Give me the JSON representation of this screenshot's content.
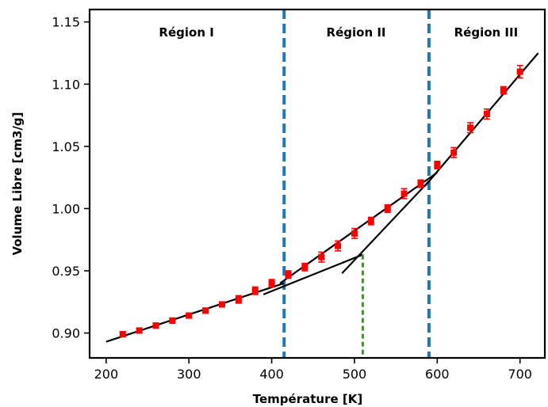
{
  "chart_data": {
    "type": "scatter",
    "title": "",
    "xlabel": "Température [K]",
    "ylabel": "Volume Libre [cm3/g]",
    "xlim": [
      180,
      730
    ],
    "ylim": [
      0.88,
      1.16
    ],
    "x_ticks": [
      200,
      300,
      400,
      500,
      600,
      700
    ],
    "y_ticks": [
      0.9,
      0.95,
      1.0,
      1.05,
      1.1,
      1.15
    ],
    "grid": false,
    "legend": "none",
    "series": [
      {
        "marker": "square",
        "color": "#ff0000",
        "x": [
          220,
          240,
          260,
          280,
          300,
          320,
          340,
          360,
          380,
          400,
          420,
          440,
          460,
          480,
          500,
          520,
          540,
          560,
          580,
          600,
          620,
          640,
          660,
          680,
          700
        ],
        "y": [
          0.899,
          0.902,
          0.906,
          0.91,
          0.914,
          0.918,
          0.923,
          0.927,
          0.934,
          0.94,
          0.947,
          0.953,
          0.961,
          0.97,
          0.98,
          0.99,
          1.0,
          1.012,
          1.02,
          1.035,
          1.045,
          1.065,
          1.076,
          1.095,
          1.11
        ],
        "y_err": [
          0.002,
          0.002,
          0.002,
          0.002,
          0.002,
          0.002,
          0.002,
          0.003,
          0.003,
          0.003,
          0.003,
          0.003,
          0.004,
          0.004,
          0.004,
          0.003,
          0.003,
          0.004,
          0.003,
          0.003,
          0.004,
          0.004,
          0.004,
          0.003,
          0.005
        ]
      }
    ],
    "fit_lines": [
      {
        "x": [
          200,
          415
        ],
        "y": [
          0.893,
          0.94
        ],
        "color": "#000000"
      },
      {
        "x": [
          390,
          510
        ],
        "y": [
          0.931,
          0.963
        ],
        "color": "#000000"
      },
      {
        "x": [
          410,
          600
        ],
        "y": [
          0.94,
          1.029
        ],
        "color": "#000000"
      },
      {
        "x": [
          485,
          590
        ],
        "y": [
          0.948,
          1.022
        ],
        "color": "#000000"
      },
      {
        "x": [
          585,
          722
        ],
        "y": [
          1.018,
          1.125
        ],
        "color": "#000000"
      }
    ],
    "region_boundaries": {
      "x": [
        415,
        590
      ],
      "color": "#1f77b4"
    },
    "transition_marker": {
      "x": 510,
      "y_top": 0.963,
      "color": "#4a8a3a"
    },
    "regions": [
      {
        "label": "Région I",
        "x_center": 297
      },
      {
        "label": "Région II",
        "x_center": 502
      },
      {
        "label": "Région III",
        "x_center": 659
      }
    ]
  }
}
